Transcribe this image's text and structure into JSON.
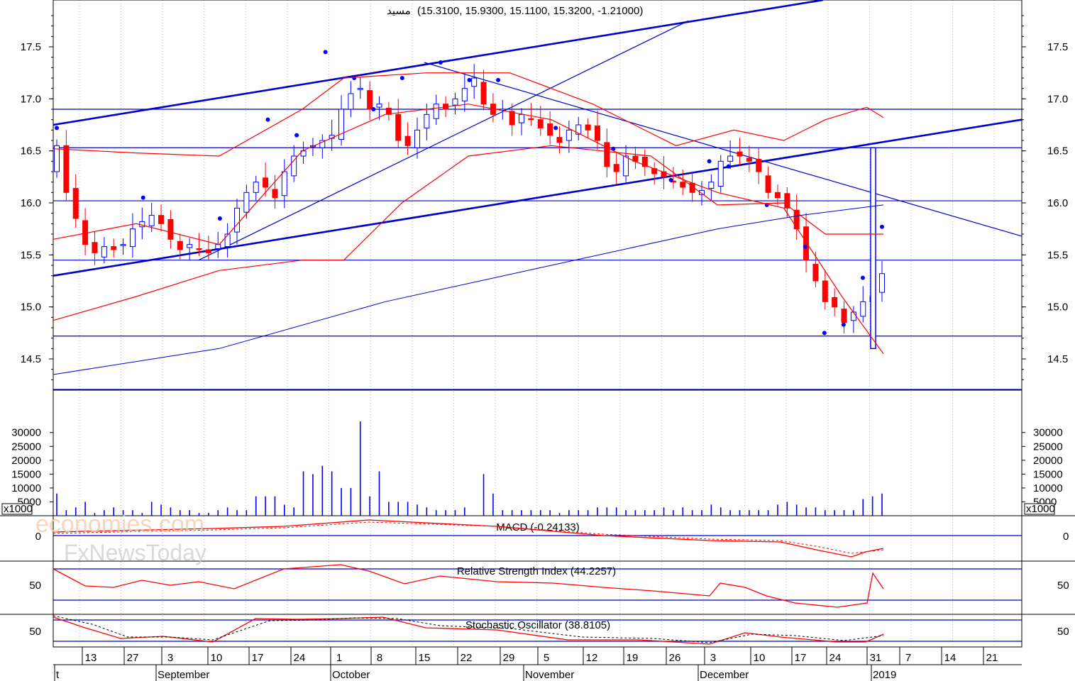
{
  "chart_data": {
    "type": "candlestick",
    "header": "(15.3100, 15.9300, 15.1100, 15.3200, -1.21000)",
    "price_axis": {
      "ylim": [
        14.2,
        17.95
      ],
      "ticks": [
        "14.5",
        "15.0",
        "15.5",
        "16.0",
        "16.5",
        "17.0",
        "17.5"
      ]
    },
    "volume_axis": {
      "multiplier_label": "x1000",
      "ticks": [
        "5000",
        "10000",
        "15000",
        "20000",
        "25000",
        "30000"
      ]
    },
    "macd": {
      "label": "MACD (-0.24133)",
      "tick": "0"
    },
    "rsi": {
      "label": "Relative Strength Index (44.2257)",
      "tick": "50"
    },
    "stochastic": {
      "label": "Stochastic Oscillator (38.8105)",
      "tick": "50"
    },
    "x_day_ticks": [
      "13",
      "27",
      "3",
      "10",
      "17",
      "24",
      "1",
      "8",
      "15",
      "22",
      "29",
      "5",
      "12",
      "19",
      "26",
      "3",
      "10",
      "17",
      "24",
      "31",
      "7",
      "14",
      "21"
    ],
    "x_month_labels": [
      "t",
      "September",
      "October",
      "November",
      "December",
      "2019"
    ],
    "horizontal_levels": [
      16.9,
      16.53,
      16.02,
      15.45,
      14.72
    ],
    "watermark": [
      "economies.com",
      "FxNewsToday"
    ],
    "colors": {
      "up": "#0000ff",
      "down": "#ff0000",
      "grid": "#b4b4b4",
      "level": "#0000cc",
      "band": "#ff0000"
    }
  }
}
